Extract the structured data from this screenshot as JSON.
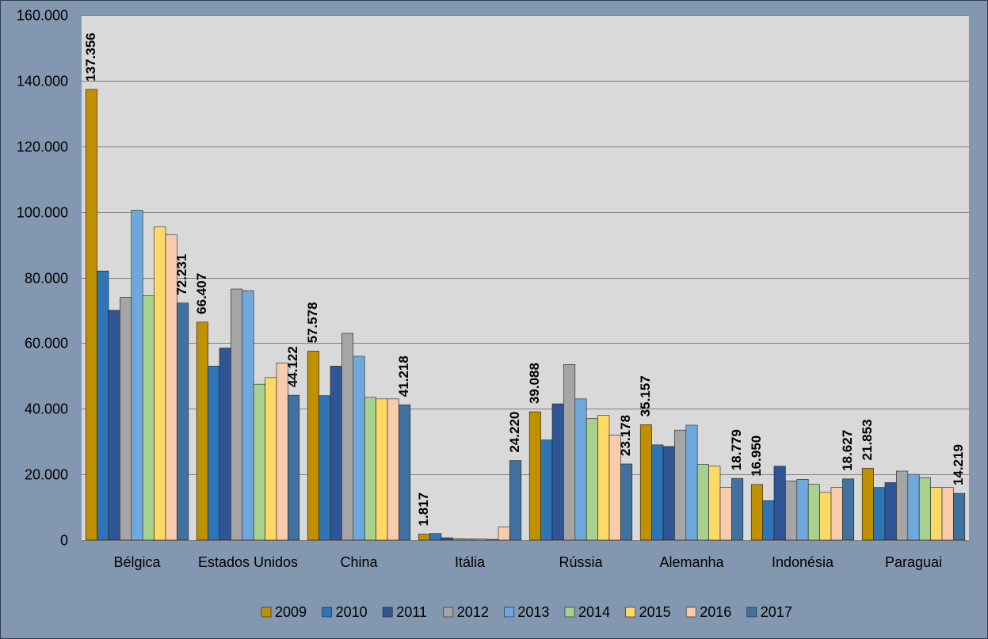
{
  "chart_data": {
    "type": "bar",
    "categories": [
      "Bélgica",
      "Estados Unidos",
      "China",
      "Itália",
      "Rússia",
      "Alemanha",
      "Indonésia",
      "Paraguai"
    ],
    "ylim": [
      0,
      160000
    ],
    "yticks": [
      0,
      20000,
      40000,
      60000,
      80000,
      100000,
      120000,
      140000,
      160000
    ],
    "ytick_labels": [
      "0",
      "20.000",
      "40.000",
      "60.000",
      "80.000",
      "100.000",
      "120.000",
      "140.000",
      "160.000"
    ],
    "grid": true,
    "legend_position": "bottom",
    "series": [
      {
        "name": "2009",
        "color": "#BF9000",
        "values": [
          137356,
          66407,
          57578,
          1817,
          39088,
          35157,
          16950,
          21853
        ],
        "data_labels": [
          "137.356",
          "66.407",
          "57.578",
          "1.817",
          "39.088",
          "35.157",
          "16.950",
          "21.853"
        ]
      },
      {
        "name": "2010",
        "color": "#2E75B6",
        "values": [
          82000,
          53000,
          44000,
          2000,
          30500,
          29000,
          12000,
          16000
        ]
      },
      {
        "name": "2011",
        "color": "#2F5597",
        "values": [
          70000,
          58500,
          53000,
          700,
          41500,
          28500,
          22500,
          17500
        ]
      },
      {
        "name": "2012",
        "color": "#A5A5A5",
        "values": [
          74000,
          76500,
          63000,
          400,
          53500,
          33500,
          18000,
          21000
        ]
      },
      {
        "name": "2013",
        "color": "#6FA8DC",
        "values": [
          100500,
          76000,
          56000,
          300,
          43000,
          35000,
          18500,
          20000
        ]
      },
      {
        "name": "2014",
        "color": "#A9D18E",
        "values": [
          74500,
          47500,
          43500,
          300,
          37000,
          23000,
          17000,
          19000
        ]
      },
      {
        "name": "2015",
        "color": "#FFD966",
        "values": [
          95500,
          49500,
          43000,
          200,
          38000,
          22500,
          14500,
          16000
        ]
      },
      {
        "name": "2016",
        "color": "#F8CBAD",
        "values": [
          93000,
          54000,
          43000,
          4000,
          32000,
          16000,
          16000,
          16000
        ]
      },
      {
        "name": "2017",
        "color": "#41729F",
        "values": [
          72231,
          44122,
          41218,
          24220,
          23178,
          18779,
          18627,
          14219
        ],
        "data_labels": [
          "72.231",
          "44.122",
          "41.218",
          "24.220",
          "23.178",
          "18.779",
          "18.627",
          "14.219"
        ]
      }
    ]
  }
}
